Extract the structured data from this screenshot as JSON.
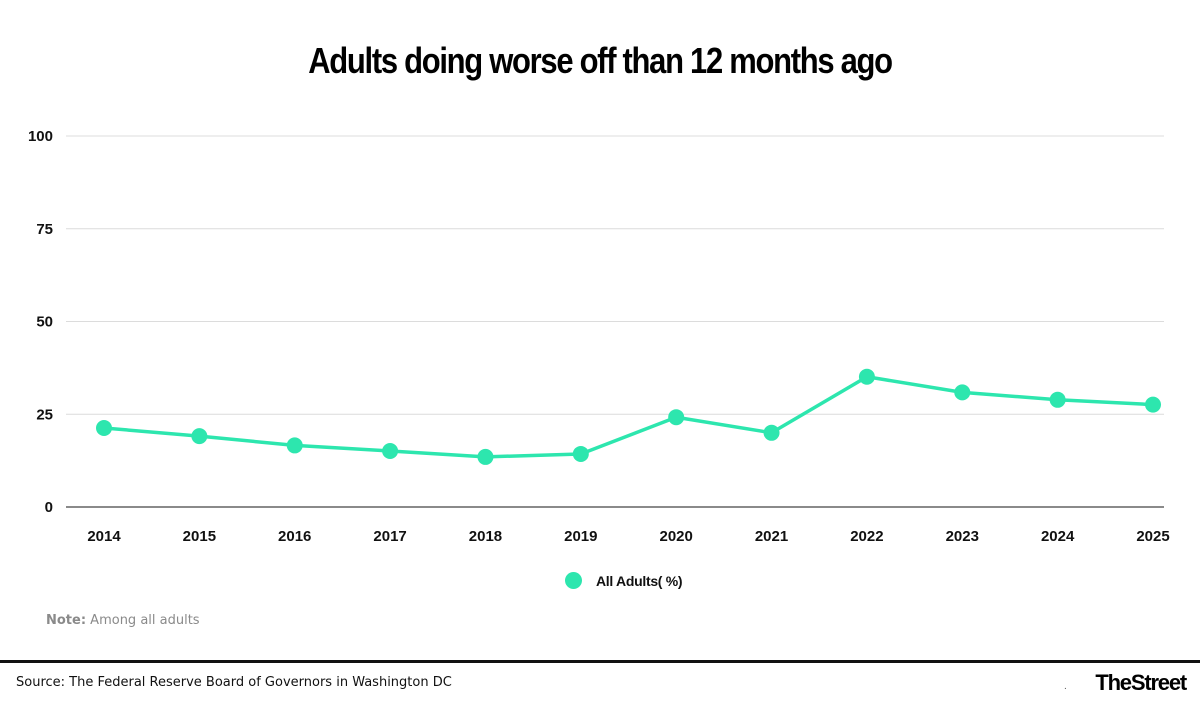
{
  "title": "Adults doing worse off than 12 months ago",
  "chart_data": {
    "type": "line",
    "title": "Adults doing worse off than 12 months ago",
    "categories": [
      "2014",
      "2015",
      "2016",
      "2017",
      "2018",
      "2019",
      "2020",
      "2021",
      "2022",
      "2023",
      "2024",
      "2025"
    ],
    "series": [
      {
        "name": "All Adults( %)",
        "values": [
          21.3,
          19.1,
          16.6,
          15.1,
          13.5,
          14.3,
          24.2,
          20.0,
          35.1,
          30.9,
          28.9,
          27.6
        ],
        "color": "#2de6ae"
      }
    ],
    "y_ticks": [
      "0",
      "25",
      "50",
      "75",
      "100"
    ],
    "ylim": [
      0,
      100
    ],
    "grid": true,
    "legend_position": "bottom-center",
    "xlabel": "",
    "ylabel": ""
  },
  "legend": {
    "label": "All Adults( %)"
  },
  "note": {
    "label": "Note:",
    "text": " Among all adults"
  },
  "source": "Source: The Federal Reserve Board of Governors in Washington DC",
  "footer_dot": ".",
  "brand": "TheStreet",
  "colors": {
    "series": "#2de6ae",
    "grid": "#dcdcdc",
    "axis": "#444444"
  }
}
